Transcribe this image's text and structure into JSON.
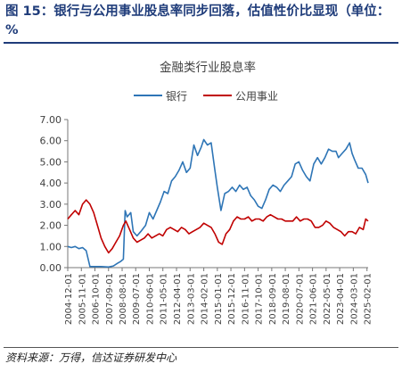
{
  "figure_title": "图 15：银行与公用事业股息率同步回落，估值性价比显现（单位：%",
  "source": "资料来源：万得，信达证券研发中心",
  "colors": {
    "title": "#1f3c7a",
    "bank": "#2e75b6",
    "utility": "#c00000",
    "axis": "#777777"
  },
  "chart_data": {
    "type": "line",
    "title": "金融类行业股息率",
    "xlabel": "",
    "ylabel": "",
    "ylim": [
      0,
      7
    ],
    "yticks": [
      "0.00",
      "1.00",
      "2.00",
      "3.00",
      "4.00",
      "5.00",
      "6.00",
      "7.00"
    ],
    "xlim": [
      "2004-12-01",
      "2025-03-01"
    ],
    "xticks": [
      "2004-12-01",
      "2005-11-01",
      "2006-10-01",
      "2007-09-01",
      "2008-08-01",
      "2009-07-01",
      "2010-06-01",
      "2011-05-01",
      "2012-04-01",
      "2013-03-01",
      "2014-02-01",
      "2015-01-01",
      "2015-12-01",
      "2016-11-01",
      "2017-10-01",
      "2018-09-01",
      "2019-08-01",
      "2020-07-01",
      "2021-06-01",
      "2022-05-01",
      "2023-04-01",
      "2024-03-01",
      "2025-02-01"
    ],
    "grid": false,
    "legend_position": "top",
    "series": [
      {
        "name": "银行",
        "color": "#2e75b6",
        "points": [
          [
            "2004-12-01",
            1.0
          ],
          [
            "2005-03-01",
            0.95
          ],
          [
            "2005-06-01",
            1.0
          ],
          [
            "2005-09-01",
            0.9
          ],
          [
            "2005-12-01",
            0.95
          ],
          [
            "2006-03-01",
            0.8
          ],
          [
            "2006-06-01",
            0.05
          ],
          [
            "2006-09-01",
            0.05
          ],
          [
            "2007-03-01",
            0.05
          ],
          [
            "2007-09-01",
            0.03
          ],
          [
            "2008-01-01",
            0.08
          ],
          [
            "2008-04-01",
            0.2
          ],
          [
            "2008-07-01",
            0.3
          ],
          [
            "2008-09-01",
            0.4
          ],
          [
            "2008-10-15",
            2.7
          ],
          [
            "2008-12-01",
            2.4
          ],
          [
            "2009-03-01",
            2.6
          ],
          [
            "2009-05-01",
            1.7
          ],
          [
            "2009-08-01",
            1.5
          ],
          [
            "2009-11-01",
            1.7
          ],
          [
            "2010-03-01",
            2.0
          ],
          [
            "2010-06-01",
            2.6
          ],
          [
            "2010-09-01",
            2.3
          ],
          [
            "2010-12-01",
            2.7
          ],
          [
            "2011-03-01",
            3.1
          ],
          [
            "2011-06-01",
            3.6
          ],
          [
            "2011-09-01",
            3.5
          ],
          [
            "2011-12-01",
            4.1
          ],
          [
            "2012-03-01",
            4.3
          ],
          [
            "2012-06-01",
            4.6
          ],
          [
            "2012-09-01",
            5.0
          ],
          [
            "2012-12-01",
            4.5
          ],
          [
            "2013-03-01",
            4.7
          ],
          [
            "2013-06-01",
            5.8
          ],
          [
            "2013-09-01",
            5.3
          ],
          [
            "2013-12-01",
            5.7
          ],
          [
            "2014-02-01",
            6.05
          ],
          [
            "2014-05-01",
            5.8
          ],
          [
            "2014-08-01",
            5.9
          ],
          [
            "2014-11-01",
            4.6
          ],
          [
            "2015-01-01",
            3.8
          ],
          [
            "2015-04-01",
            2.7
          ],
          [
            "2015-07-01",
            3.5
          ],
          [
            "2015-10-01",
            3.6
          ],
          [
            "2016-01-01",
            3.8
          ],
          [
            "2016-04-01",
            3.6
          ],
          [
            "2016-07-01",
            3.9
          ],
          [
            "2016-10-01",
            3.7
          ],
          [
            "2017-01-01",
            3.8
          ],
          [
            "2017-04-01",
            3.4
          ],
          [
            "2017-07-01",
            3.2
          ],
          [
            "2017-10-01",
            2.9
          ],
          [
            "2018-01-01",
            2.8
          ],
          [
            "2018-04-01",
            3.2
          ],
          [
            "2018-07-01",
            3.7
          ],
          [
            "2018-10-01",
            3.9
          ],
          [
            "2019-01-01",
            3.8
          ],
          [
            "2019-04-01",
            3.6
          ],
          [
            "2019-07-01",
            3.9
          ],
          [
            "2019-10-01",
            4.1
          ],
          [
            "2020-01-01",
            4.3
          ],
          [
            "2020-04-01",
            4.9
          ],
          [
            "2020-07-01",
            5.0
          ],
          [
            "2020-10-01",
            4.6
          ],
          [
            "2021-01-01",
            4.3
          ],
          [
            "2021-04-01",
            4.1
          ],
          [
            "2021-07-01",
            4.9
          ],
          [
            "2021-10-01",
            5.2
          ],
          [
            "2022-01-01",
            4.9
          ],
          [
            "2022-04-01",
            5.2
          ],
          [
            "2022-07-01",
            5.6
          ],
          [
            "2022-10-01",
            5.5
          ],
          [
            "2023-01-01",
            5.5
          ],
          [
            "2023-03-01",
            5.2
          ],
          [
            "2023-06-01",
            5.4
          ],
          [
            "2023-09-01",
            5.6
          ],
          [
            "2023-12-01",
            5.9
          ],
          [
            "2024-02-01",
            5.4
          ],
          [
            "2024-04-01",
            5.1
          ],
          [
            "2024-07-01",
            4.7
          ],
          [
            "2024-10-01",
            4.7
          ],
          [
            "2025-01-01",
            4.4
          ],
          [
            "2025-03-01",
            4.0
          ]
        ]
      },
      {
        "name": "公用事业",
        "color": "#c00000",
        "points": [
          [
            "2004-12-01",
            2.3
          ],
          [
            "2005-03-01",
            2.5
          ],
          [
            "2005-06-01",
            2.7
          ],
          [
            "2005-09-01",
            2.5
          ],
          [
            "2005-12-01",
            3.0
          ],
          [
            "2006-03-01",
            3.2
          ],
          [
            "2006-06-01",
            3.0
          ],
          [
            "2006-09-01",
            2.6
          ],
          [
            "2006-12-01",
            2.0
          ],
          [
            "2007-03-01",
            1.4
          ],
          [
            "2007-06-01",
            1.0
          ],
          [
            "2007-09-01",
            0.7
          ],
          [
            "2007-12-01",
            0.9
          ],
          [
            "2008-03-01",
            1.2
          ],
          [
            "2008-06-01",
            1.5
          ],
          [
            "2008-09-01",
            2.0
          ],
          [
            "2008-11-01",
            2.2
          ],
          [
            "2009-02-01",
            1.8
          ],
          [
            "2009-05-01",
            1.4
          ],
          [
            "2009-08-01",
            1.2
          ],
          [
            "2009-11-01",
            1.3
          ],
          [
            "2010-02-01",
            1.4
          ],
          [
            "2010-05-01",
            1.6
          ],
          [
            "2010-08-01",
            1.4
          ],
          [
            "2010-11-01",
            1.5
          ],
          [
            "2011-02-01",
            1.6
          ],
          [
            "2011-05-01",
            1.5
          ],
          [
            "2011-08-01",
            1.8
          ],
          [
            "2011-11-01",
            1.9
          ],
          [
            "2012-02-01",
            1.8
          ],
          [
            "2012-05-01",
            1.7
          ],
          [
            "2012-08-01",
            1.9
          ],
          [
            "2012-11-01",
            1.8
          ],
          [
            "2013-02-01",
            1.6
          ],
          [
            "2013-05-01",
            1.7
          ],
          [
            "2013-08-01",
            1.8
          ],
          [
            "2013-11-01",
            1.9
          ],
          [
            "2014-02-01",
            2.1
          ],
          [
            "2014-05-01",
            2.0
          ],
          [
            "2014-08-01",
            1.9
          ],
          [
            "2014-11-01",
            1.6
          ],
          [
            "2015-02-01",
            1.2
          ],
          [
            "2015-05-01",
            1.1
          ],
          [
            "2015-08-01",
            1.6
          ],
          [
            "2015-11-01",
            1.8
          ],
          [
            "2016-02-01",
            2.2
          ],
          [
            "2016-05-01",
            2.4
          ],
          [
            "2016-08-01",
            2.3
          ],
          [
            "2016-11-01",
            2.3
          ],
          [
            "2017-02-01",
            2.4
          ],
          [
            "2017-05-01",
            2.2
          ],
          [
            "2017-08-01",
            2.3
          ],
          [
            "2017-11-01",
            2.3
          ],
          [
            "2018-02-01",
            2.2
          ],
          [
            "2018-05-01",
            2.4
          ],
          [
            "2018-08-01",
            2.5
          ],
          [
            "2018-11-01",
            2.4
          ],
          [
            "2019-02-01",
            2.3
          ],
          [
            "2019-05-01",
            2.3
          ],
          [
            "2019-08-01",
            2.2
          ],
          [
            "2019-11-01",
            2.2
          ],
          [
            "2020-02-01",
            2.2
          ],
          [
            "2020-05-01",
            2.4
          ],
          [
            "2020-08-01",
            2.2
          ],
          [
            "2020-11-01",
            2.3
          ],
          [
            "2021-02-01",
            2.3
          ],
          [
            "2021-05-01",
            2.2
          ],
          [
            "2021-08-01",
            1.9
          ],
          [
            "2021-11-01",
            1.9
          ],
          [
            "2022-02-01",
            2.0
          ],
          [
            "2022-05-01",
            2.2
          ],
          [
            "2022-08-01",
            2.1
          ],
          [
            "2022-11-01",
            1.9
          ],
          [
            "2023-02-01",
            1.8
          ],
          [
            "2023-05-01",
            1.7
          ],
          [
            "2023-08-01",
            1.5
          ],
          [
            "2023-11-01",
            1.7
          ],
          [
            "2024-02-01",
            1.7
          ],
          [
            "2024-05-01",
            1.6
          ],
          [
            "2024-08-01",
            1.9
          ],
          [
            "2024-11-01",
            1.8
          ],
          [
            "2025-01-01",
            2.3
          ],
          [
            "2025-03-01",
            2.2
          ]
        ]
      }
    ]
  }
}
